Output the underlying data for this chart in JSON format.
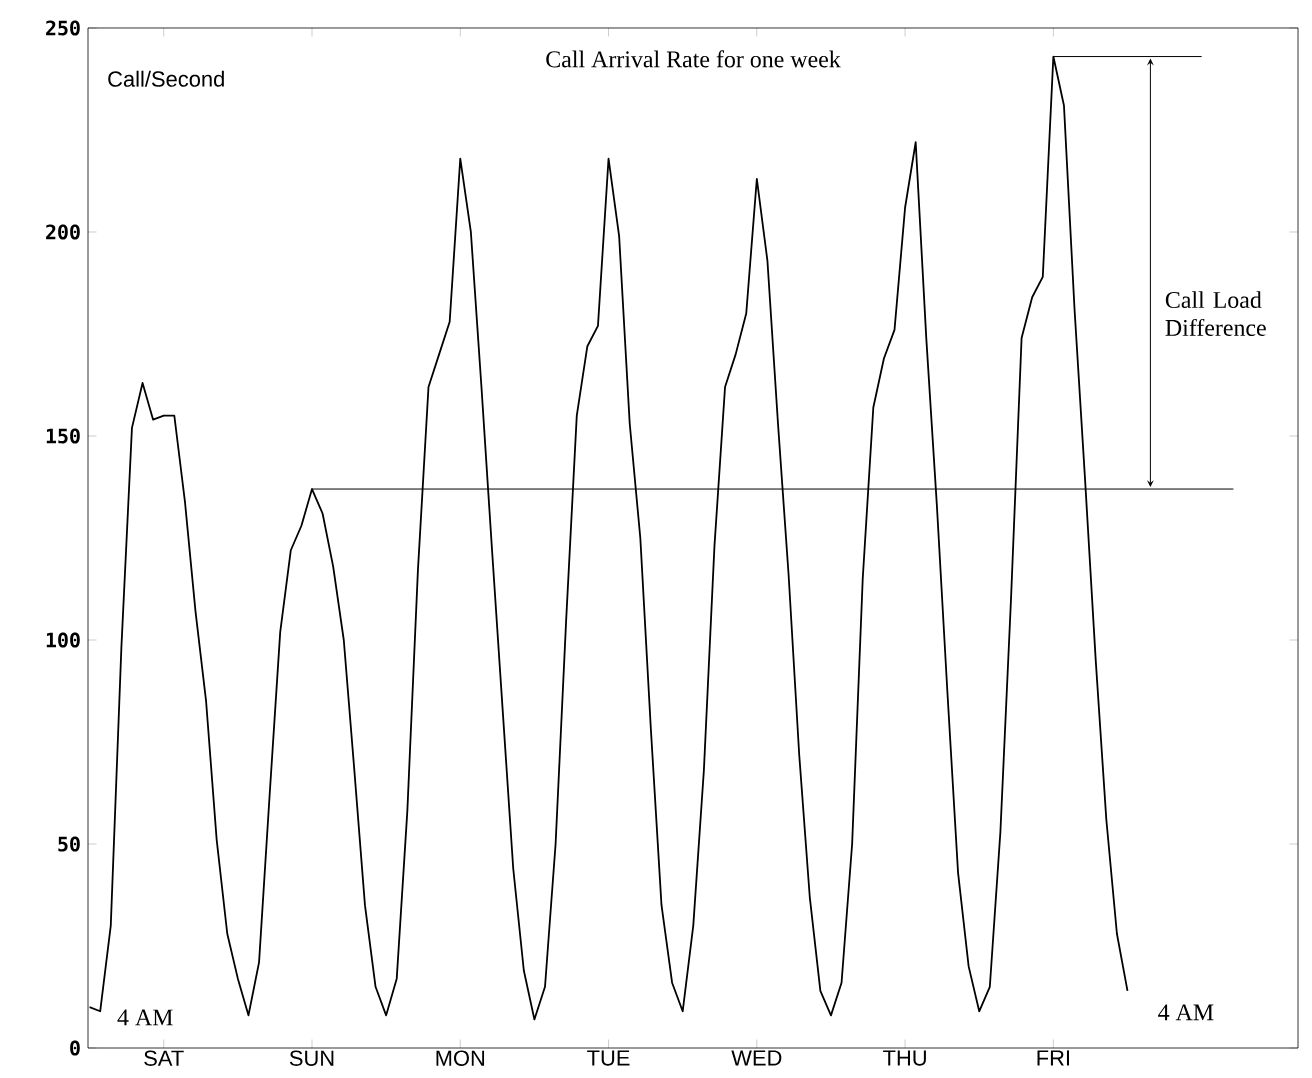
{
  "chart_data": {
    "type": "line",
    "title": "Call Arrival Rate for one week",
    "ylabel": "Call/Second",
    "categories": [
      null,
      null,
      null,
      null,
      null,
      null,
      null,
      "SAT",
      null,
      null,
      null,
      null,
      null,
      null,
      null,
      null,
      null,
      null,
      null,
      null,
      null,
      "SUN",
      null,
      null,
      null,
      null,
      null,
      null,
      null,
      null,
      null,
      null,
      null,
      null,
      null,
      "MON",
      null,
      null,
      null,
      null,
      null,
      null,
      null,
      null,
      null,
      null,
      null,
      null,
      null,
      "TUE",
      null,
      null,
      null,
      null,
      null,
      null,
      null,
      null,
      null,
      null,
      null,
      null,
      null,
      "WED",
      null,
      null,
      null,
      null,
      null,
      null,
      null,
      null,
      null,
      null,
      null,
      null,
      null,
      "THU",
      null,
      null,
      null,
      null,
      null,
      null,
      null,
      null,
      null,
      null,
      null,
      null,
      null,
      "FRI",
      null,
      null,
      null,
      null,
      null,
      null,
      null,
      null,
      null,
      null,
      null,
      null,
      null,
      null,
      null,
      null,
      null,
      null,
      null,
      null,
      null,
      null,
      null
    ],
    "ylim": [
      0,
      250
    ],
    "yticks": [
      0,
      50,
      100,
      150,
      200,
      250
    ],
    "grid": false,
    "marker": "none",
    "line_style": "solid",
    "series": [
      {
        "color": "#000000",
        "values": [
          10,
          9,
          30,
          98,
          152,
          163,
          154,
          155,
          155,
          134,
          107,
          85,
          51,
          28,
          17,
          8,
          21,
          62,
          102,
          122,
          128,
          137,
          131,
          118,
          100,
          68,
          35,
          15,
          8,
          17,
          58,
          117,
          162,
          170,
          178,
          218,
          200,
          162,
          122,
          83,
          44,
          19,
          7,
          15,
          50,
          105,
          155,
          172,
          177,
          218,
          199,
          153,
          125,
          78,
          35,
          16,
          9,
          30,
          68,
          123,
          162,
          170,
          180,
          213,
          193,
          153,
          116,
          72,
          37,
          14,
          8,
          16,
          50,
          115,
          157,
          169,
          176,
          206,
          222,
          174,
          133,
          87,
          43,
          20,
          9,
          15,
          53,
          110,
          174,
          184,
          189,
          243,
          231,
          181,
          139,
          95,
          56,
          28,
          14,
          null,
          null,
          null,
          null,
          null,
          null,
          null,
          null,
          null,
          null,
          null,
          null,
          null,
          null,
          null,
          null
        ]
      },
      {
        "color": "#000000",
        "values": [
          null,
          null,
          null,
          null,
          null,
          null,
          null,
          null,
          null,
          null,
          null,
          null,
          null,
          null,
          null,
          null,
          null,
          null,
          null,
          null,
          null,
          137,
          137,
          137,
          137,
          137,
          137,
          137,
          137,
          137,
          137,
          137,
          137,
          137,
          137,
          137,
          137,
          137,
          137,
          137,
          137,
          137,
          137,
          137,
          137,
          137,
          137,
          137,
          137,
          137,
          137,
          137,
          137,
          137,
          137,
          137,
          137,
          137,
          137,
          137,
          137,
          137,
          137,
          137,
          137,
          137,
          137,
          137,
          137,
          137,
          137,
          137,
          137,
          137,
          137,
          137,
          137,
          137,
          137,
          137,
          137,
          137,
          137,
          137,
          137,
          137,
          137,
          137,
          137,
          137,
          137,
          137,
          137,
          137,
          137,
          137,
          137,
          137,
          137,
          137,
          137,
          137,
          137,
          137,
          137,
          137,
          137,
          137,
          137,
          null,
          null,
          null,
          null,
          null,
          null
        ]
      },
      {
        "color": "#000000",
        "values": [
          null,
          null,
          null,
          null,
          null,
          null,
          null,
          null,
          null,
          null,
          null,
          null,
          null,
          null,
          null,
          null,
          null,
          null,
          null,
          null,
          null,
          null,
          null,
          null,
          null,
          null,
          null,
          null,
          null,
          null,
          null,
          null,
          null,
          null,
          null,
          null,
          null,
          null,
          null,
          null,
          null,
          null,
          null,
          null,
          null,
          null,
          null,
          null,
          null,
          null,
          null,
          null,
          null,
          null,
          null,
          null,
          null,
          null,
          null,
          null,
          null,
          null,
          null,
          null,
          null,
          null,
          null,
          null,
          null,
          null,
          null,
          null,
          null,
          null,
          null,
          null,
          null,
          null,
          null,
          null,
          null,
          null,
          null,
          null,
          null,
          null,
          null,
          null,
          null,
          null,
          null,
          243,
          243,
          243,
          243,
          243,
          243,
          243,
          243,
          243,
          243,
          243,
          243,
          243,
          243,
          243,
          null,
          null,
          null,
          null,
          null,
          null,
          null,
          null,
          null
        ]
      }
    ],
    "annotations": [
      "4 AM",
      "4 AM",
      "Call Load Difference"
    ]
  }
}
